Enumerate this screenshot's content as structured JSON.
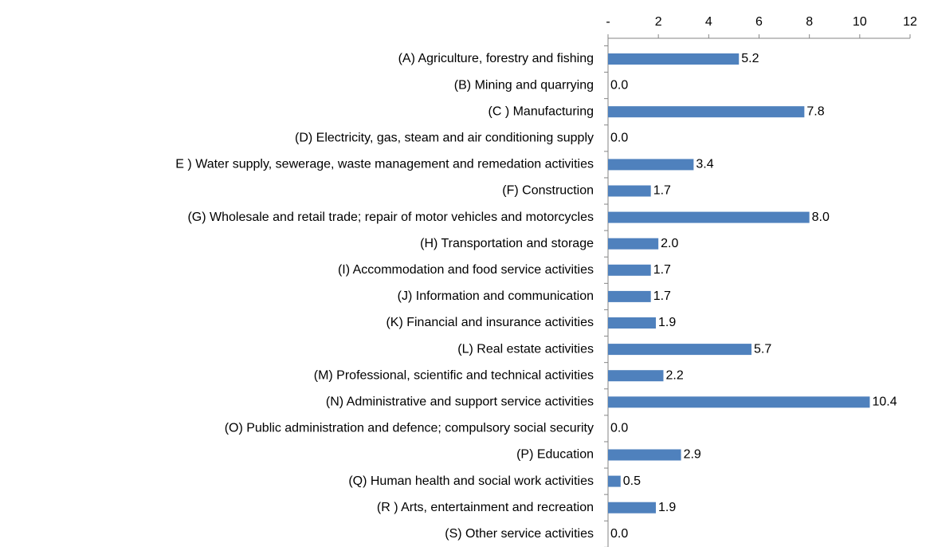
{
  "chart_data": {
    "type": "bar",
    "orientation": "horizontal",
    "categories": [
      "(A) Agriculture, forestry and fishing",
      "(B) Mining and quarrying",
      "(C ) Manufacturing",
      "(D) Electricity, gas, steam and air conditioning supply",
      "E ) Water supply, sewerage, waste management and remedation activities",
      "(F) Construction",
      "(G) Wholesale and retail trade; repair of motor vehicles and motorcycles",
      "(H) Transportation and storage",
      "(I) Accommodation and food service activities",
      "(J) Information and communication",
      "(K) Financial and insurance activities",
      "(L) Real estate activities",
      "(M) Professional, scientific and technical activities",
      "(N) Administrative and support service activities",
      "(O) Public administration and defence; compulsory social security",
      "(P) Education",
      "(Q) Human health and social work activities",
      "(R ) Arts, entertainment and recreation",
      "(S) Other service activities"
    ],
    "values": [
      5.2,
      0,
      7.8,
      0,
      3.4,
      1.7,
      8.0,
      2.0,
      1.7,
      1.7,
      1.9,
      5.7,
      2.2,
      10.4,
      0,
      2.9,
      0.5,
      1.9,
      0
    ],
    "value_labels": [
      "5.2",
      "0.0",
      "7.8",
      "0.0",
      "3.4",
      "1.7",
      "8.0",
      "2.0",
      "1.7",
      "1.7",
      "1.9",
      "5.7",
      "2.2",
      "10.4",
      "0.0",
      "2.9",
      "0.5",
      "1.9",
      "0.0"
    ],
    "color": "#4f81bd",
    "xlim": [
      0,
      12
    ],
    "xticks": [
      {
        "value": 0,
        "label": "-"
      },
      2,
      4,
      6,
      8,
      10,
      12
    ]
  }
}
